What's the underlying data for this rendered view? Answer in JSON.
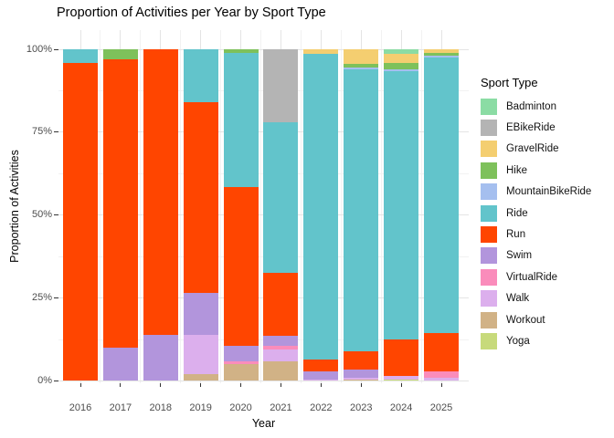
{
  "page": {
    "title": "Proportion of Activities per Year by Sport Type"
  },
  "colors": {
    "background": "#FFFFFF",
    "grid_major": "#E4E4E4",
    "grid_minor": "#F2F2F2",
    "tick": "#333333",
    "tick_label": "#4D4D4D",
    "text": "#000000"
  },
  "chart_data": {
    "type": "bar",
    "subtype": "stacked-100-percent",
    "title": "Proportion of Activities per Year by Sport Type",
    "xlabel": "Year",
    "ylabel": "Proportion of Activities",
    "legend_title": "Sport Type",
    "legend_position": "right",
    "grid": true,
    "ylim": [
      0,
      100
    ],
    "unit": "percent",
    "y_ticks": [
      {
        "value": 100,
        "label": "100%"
      },
      {
        "value": 75,
        "label": "75%"
      },
      {
        "value": 50,
        "label": "50%"
      },
      {
        "value": 25,
        "label": "25%"
      },
      {
        "value": 0,
        "label": "0%"
      }
    ],
    "y_minor_values": [
      87.5,
      62.5,
      37.5,
      12.5
    ],
    "categories": [
      "2016",
      "2017",
      "2018",
      "2019",
      "2020",
      "2021",
      "2022",
      "2023",
      "2024",
      "2025"
    ],
    "stack_order_top_to_bottom": true,
    "series": [
      {
        "name": "Badminton",
        "color": "#8BDCA4",
        "values": [
          0,
          0,
          0,
          0,
          0,
          0,
          0,
          0,
          1.5,
          0
        ]
      },
      {
        "name": "EBikeRide",
        "color": "#B4B4B4",
        "values": [
          0,
          0,
          0,
          0,
          0,
          22,
          0,
          0,
          0,
          0
        ]
      },
      {
        "name": "GravelRide",
        "color": "#F4CE70",
        "values": [
          0,
          0,
          0,
          0,
          0,
          0,
          1.5,
          4.5,
          2.5,
          1
        ]
      },
      {
        "name": "Hike",
        "color": "#7EC15B",
        "values": [
          0,
          3,
          0,
          0,
          1,
          0,
          0,
          1,
          2,
          1
        ]
      },
      {
        "name": "MountainBikeRide",
        "color": "#A5BFEF",
        "values": [
          0,
          0,
          0,
          0,
          0,
          0,
          0,
          0.5,
          0.5,
          0.5
        ]
      },
      {
        "name": "Ride",
        "color": "#62C4CB",
        "values": [
          4,
          0,
          0,
          16,
          40.5,
          45.5,
          92,
          85,
          81,
          83
        ]
      },
      {
        "name": "Run",
        "color": "#FF4500",
        "values": [
          96,
          87,
          86,
          57.5,
          48,
          19,
          3.5,
          5.5,
          11,
          11.5
        ]
      },
      {
        "name": "Swim",
        "color": "#B295DC",
        "values": [
          0,
          10,
          14,
          12.5,
          4.5,
          3,
          2.5,
          2.5,
          0,
          0
        ]
      },
      {
        "name": "VirtualRide",
        "color": "#FA8CBB",
        "values": [
          0,
          0,
          0,
          0,
          1,
          1,
          0,
          0,
          0,
          2
        ]
      },
      {
        "name": "Walk",
        "color": "#DCAFED",
        "values": [
          0,
          0,
          0,
          12,
          0,
          3.5,
          0.5,
          0.5,
          1,
          1
        ]
      },
      {
        "name": "Workout",
        "color": "#D1B286",
        "values": [
          0,
          0,
          0,
          2,
          5,
          6,
          0,
          0.5,
          0,
          0
        ]
      },
      {
        "name": "Yoga",
        "color": "#C7DA7B",
        "values": [
          0,
          0,
          0,
          0,
          0,
          0,
          0,
          0,
          0.5,
          0
        ]
      }
    ]
  }
}
